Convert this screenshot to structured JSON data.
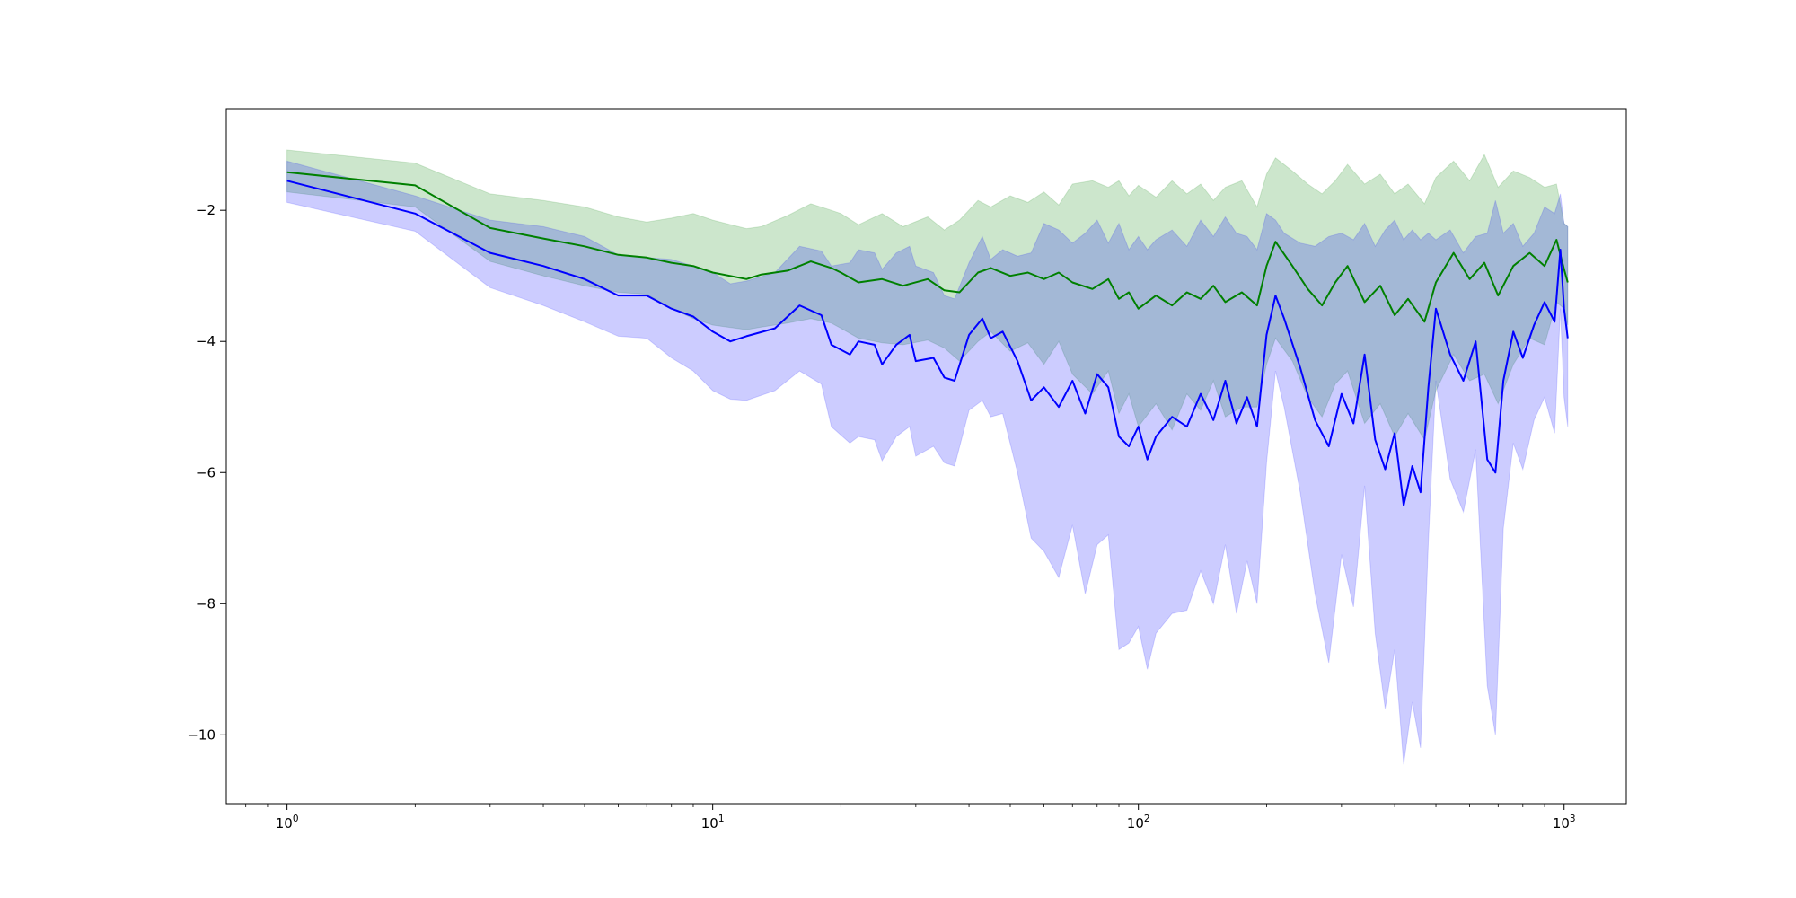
{
  "chart_data": {
    "type": "line",
    "title": "",
    "xlabel": "",
    "ylabel": "",
    "x_scale": "log",
    "xlim": [
      0.72,
      1400
    ],
    "ylim": [
      -11.05,
      -0.45
    ],
    "grid": false,
    "legend": "none",
    "x_major_ticks": [
      {
        "value": 1,
        "base": "10",
        "exp": "0"
      },
      {
        "value": 10,
        "base": "10",
        "exp": "1"
      },
      {
        "value": 100,
        "base": "10",
        "exp": "2"
      },
      {
        "value": 1000,
        "base": "10",
        "exp": "3"
      }
    ],
    "y_ticks": [
      {
        "value": -2,
        "label": "−2"
      },
      {
        "value": -4,
        "label": "−4"
      },
      {
        "value": -6,
        "label": "−6"
      },
      {
        "value": -8,
        "label": "−8"
      },
      {
        "value": -10,
        "label": "−10"
      }
    ],
    "series": [
      {
        "color": "#008000",
        "band_color": "#008000",
        "band_opacity": 0.2,
        "points": [
          [
            1,
            -1.42,
            -1.08,
            -1.72
          ],
          [
            2,
            -1.62,
            -1.28,
            -1.95
          ],
          [
            3,
            -2.27,
            -1.75,
            -2.78
          ],
          [
            4,
            -2.43,
            -1.85,
            -3.0
          ],
          [
            5,
            -2.55,
            -1.95,
            -3.15
          ],
          [
            6,
            -2.68,
            -2.1,
            -3.25
          ],
          [
            7,
            -2.72,
            -2.18,
            -3.28
          ],
          [
            8,
            -2.8,
            -2.12,
            -3.5
          ],
          [
            9,
            -2.85,
            -2.05,
            -3.65
          ],
          [
            10,
            -2.95,
            -2.15,
            -3.75
          ],
          [
            12,
            -3.05,
            -2.28,
            -3.82
          ],
          [
            13,
            -2.98,
            -2.25,
            -3.78
          ],
          [
            15,
            -2.92,
            -2.08,
            -3.72
          ],
          [
            17,
            -2.78,
            -1.9,
            -3.65
          ],
          [
            19,
            -2.88,
            -2.0,
            -3.72
          ],
          [
            20,
            -2.95,
            -2.05,
            -3.8
          ],
          [
            22,
            -3.1,
            -2.22,
            -3.95
          ],
          [
            25,
            -3.05,
            -2.05,
            -4.02
          ],
          [
            28,
            -3.15,
            -2.25,
            -4.05
          ],
          [
            32,
            -3.05,
            -2.1,
            -3.98
          ],
          [
            35,
            -3.22,
            -2.3,
            -4.1
          ],
          [
            38,
            -3.25,
            -2.15,
            -4.3
          ],
          [
            42,
            -2.95,
            -1.85,
            -4.0
          ],
          [
            45,
            -2.88,
            -1.95,
            -3.85
          ],
          [
            50,
            -3.0,
            -1.78,
            -4.15
          ],
          [
            55,
            -2.95,
            -1.88,
            -4.02
          ],
          [
            60,
            -3.05,
            -1.72,
            -4.35
          ],
          [
            65,
            -2.95,
            -1.92,
            -4.0
          ],
          [
            70,
            -3.1,
            -1.6,
            -4.5
          ],
          [
            78,
            -3.2,
            -1.55,
            -4.8
          ],
          [
            85,
            -3.05,
            -1.65,
            -4.45
          ],
          [
            90,
            -3.35,
            -1.55,
            -5.1
          ],
          [
            95,
            -3.25,
            -1.78,
            -4.8
          ],
          [
            100,
            -3.5,
            -1.62,
            -5.3
          ],
          [
            110,
            -3.3,
            -1.8,
            -4.95
          ],
          [
            120,
            -3.45,
            -1.55,
            -5.35
          ],
          [
            130,
            -3.25,
            -1.75,
            -4.8
          ],
          [
            140,
            -3.35,
            -1.6,
            -5.05
          ],
          [
            150,
            -3.15,
            -1.85,
            -4.6
          ],
          [
            160,
            -3.4,
            -1.65,
            -5.15
          ],
          [
            175,
            -3.25,
            -1.55,
            -5.0
          ],
          [
            190,
            -3.45,
            -1.95,
            -5.0
          ],
          [
            200,
            -2.85,
            -1.45,
            -4.35
          ],
          [
            210,
            -2.48,
            -1.2,
            -3.95
          ],
          [
            230,
            -2.85,
            -1.4,
            -4.3
          ],
          [
            250,
            -3.2,
            -1.6,
            -4.85
          ],
          [
            270,
            -3.45,
            -1.75,
            -5.15
          ],
          [
            290,
            -3.1,
            -1.55,
            -4.65
          ],
          [
            310,
            -2.85,
            -1.3,
            -4.45
          ],
          [
            340,
            -3.4,
            -1.6,
            -5.25
          ],
          [
            370,
            -3.15,
            -1.45,
            -4.95
          ],
          [
            400,
            -3.6,
            -1.75,
            -5.45
          ],
          [
            430,
            -3.35,
            -1.6,
            -5.1
          ],
          [
            470,
            -3.7,
            -1.9,
            -5.5
          ],
          [
            500,
            -3.1,
            -1.5,
            -4.75
          ],
          [
            550,
            -2.65,
            -1.25,
            -4.2
          ],
          [
            600,
            -3.05,
            -1.55,
            -4.6
          ],
          [
            650,
            -2.8,
            -1.15,
            -4.5
          ],
          [
            700,
            -3.3,
            -1.65,
            -4.95
          ],
          [
            760,
            -2.85,
            -1.4,
            -4.35
          ],
          [
            830,
            -2.65,
            -1.5,
            -3.95
          ],
          [
            900,
            -2.85,
            -1.65,
            -4.05
          ],
          [
            960,
            -2.45,
            -1.6,
            -3.4
          ],
          [
            1000,
            -2.9,
            -2.2,
            -3.5
          ],
          [
            1020,
            -3.1,
            -2.25,
            -3.75
          ]
        ]
      },
      {
        "color": "#0000ff",
        "band_color": "#0000ff",
        "band_opacity": 0.2,
        "points": [
          [
            1,
            -1.55,
            -1.25,
            -1.88
          ],
          [
            2,
            -2.05,
            -1.78,
            -2.32
          ],
          [
            3,
            -2.65,
            -2.15,
            -3.18
          ],
          [
            4,
            -2.85,
            -2.25,
            -3.45
          ],
          [
            5,
            -3.05,
            -2.4,
            -3.7
          ],
          [
            6,
            -3.3,
            -2.68,
            -3.92
          ],
          [
            7,
            -3.3,
            -2.72,
            -3.95
          ],
          [
            8,
            -3.5,
            -2.75,
            -4.25
          ],
          [
            9,
            -3.62,
            -2.85,
            -4.45
          ],
          [
            10,
            -3.85,
            -2.95,
            -4.75
          ],
          [
            11,
            -4.0,
            -3.12,
            -4.88
          ],
          [
            12,
            -3.92,
            -3.08,
            -4.9
          ],
          [
            14,
            -3.8,
            -2.95,
            -4.75
          ],
          [
            16,
            -3.45,
            -2.55,
            -4.45
          ],
          [
            18,
            -3.6,
            -2.62,
            -4.65
          ],
          [
            19,
            -4.05,
            -2.85,
            -5.3
          ],
          [
            21,
            -4.2,
            -2.8,
            -5.55
          ],
          [
            22,
            -4.0,
            -2.6,
            -5.45
          ],
          [
            24,
            -4.05,
            -2.65,
            -5.5
          ],
          [
            25,
            -4.35,
            -2.9,
            -5.82
          ],
          [
            27,
            -4.05,
            -2.65,
            -5.45
          ],
          [
            29,
            -3.9,
            -2.55,
            -5.3
          ],
          [
            30,
            -4.3,
            -2.85,
            -5.75
          ],
          [
            33,
            -4.25,
            -2.95,
            -5.6
          ],
          [
            35,
            -4.55,
            -3.3,
            -5.85
          ],
          [
            37,
            -4.6,
            -3.35,
            -5.9
          ],
          [
            40,
            -3.9,
            -2.8,
            -5.05
          ],
          [
            43,
            -3.65,
            -2.4,
            -4.9
          ],
          [
            45,
            -3.95,
            -2.75,
            -5.15
          ],
          [
            48,
            -3.85,
            -2.6,
            -5.1
          ],
          [
            52,
            -4.3,
            -2.7,
            -6.0
          ],
          [
            56,
            -4.9,
            -2.65,
            -7.0
          ],
          [
            60,
            -4.7,
            -2.2,
            -7.2
          ],
          [
            65,
            -5.0,
            -2.3,
            -7.6
          ],
          [
            70,
            -4.6,
            -2.5,
            -6.8
          ],
          [
            75,
            -5.1,
            -2.35,
            -7.85
          ],
          [
            80,
            -4.5,
            -2.15,
            -7.1
          ],
          [
            85,
            -4.7,
            -2.5,
            -6.95
          ],
          [
            90,
            -5.45,
            -2.2,
            -8.7
          ],
          [
            95,
            -5.6,
            -2.6,
            -8.6
          ],
          [
            100,
            -5.3,
            -2.4,
            -8.35
          ],
          [
            105,
            -5.8,
            -2.6,
            -9.0
          ],
          [
            110,
            -5.45,
            -2.45,
            -8.45
          ],
          [
            120,
            -5.15,
            -2.3,
            -8.15
          ],
          [
            130,
            -5.3,
            -2.55,
            -8.1
          ],
          [
            140,
            -4.8,
            -2.15,
            -7.5
          ],
          [
            150,
            -5.2,
            -2.4,
            -8.0
          ],
          [
            160,
            -4.6,
            -2.1,
            -7.1
          ],
          [
            170,
            -5.25,
            -2.35,
            -8.15
          ],
          [
            180,
            -4.85,
            -2.4,
            -7.35
          ],
          [
            190,
            -5.3,
            -2.6,
            -8.0
          ],
          [
            200,
            -3.9,
            -2.05,
            -5.85
          ],
          [
            210,
            -3.3,
            -2.15,
            -4.45
          ],
          [
            220,
            -3.65,
            -2.35,
            -5.0
          ],
          [
            240,
            -4.4,
            -2.5,
            -6.3
          ],
          [
            260,
            -5.2,
            -2.55,
            -7.85
          ],
          [
            280,
            -5.6,
            -2.4,
            -8.9
          ],
          [
            300,
            -4.8,
            -2.35,
            -7.25
          ],
          [
            320,
            -5.25,
            -2.45,
            -8.05
          ],
          [
            340,
            -4.2,
            -2.2,
            -6.2
          ],
          [
            360,
            -5.5,
            -2.55,
            -8.45
          ],
          [
            380,
            -5.95,
            -2.3,
            -9.6
          ],
          [
            400,
            -5.4,
            -2.15,
            -8.7
          ],
          [
            420,
            -6.5,
            -2.45,
            -10.45
          ],
          [
            440,
            -5.9,
            -2.3,
            -9.5
          ],
          [
            460,
            -6.3,
            -2.45,
            -10.2
          ],
          [
            480,
            -4.7,
            -2.35,
            -7.05
          ],
          [
            500,
            -3.5,
            -2.45,
            -4.6
          ],
          [
            540,
            -4.2,
            -2.3,
            -6.1
          ],
          [
            580,
            -4.6,
            -2.65,
            -6.6
          ],
          [
            620,
            -4.0,
            -2.4,
            -5.65
          ],
          [
            660,
            -5.8,
            -2.35,
            -9.25
          ],
          [
            690,
            -6.0,
            -1.85,
            -10.0
          ],
          [
            720,
            -4.6,
            -2.35,
            -6.85
          ],
          [
            760,
            -3.85,
            -2.2,
            -5.55
          ],
          [
            800,
            -4.25,
            -2.55,
            -5.95
          ],
          [
            850,
            -3.75,
            -2.35,
            -5.2
          ],
          [
            900,
            -3.4,
            -1.95,
            -4.85
          ],
          [
            950,
            -3.7,
            -2.05,
            -5.4
          ],
          [
            980,
            -2.6,
            -1.75,
            -3.5
          ],
          [
            1000,
            -3.5,
            -2.2,
            -4.85
          ],
          [
            1020,
            -3.95,
            -2.25,
            -5.3
          ]
        ]
      }
    ]
  }
}
